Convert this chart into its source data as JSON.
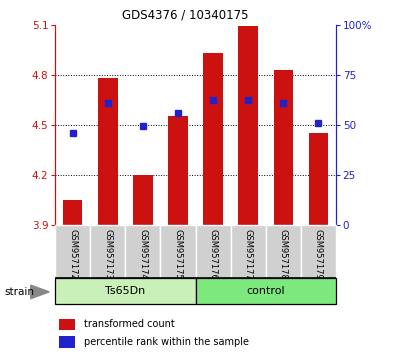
{
  "title": "GDS4376 / 10340175",
  "samples": [
    "GSM957172",
    "GSM957173",
    "GSM957174",
    "GSM957175",
    "GSM957176",
    "GSM957177",
    "GSM957178",
    "GSM957179"
  ],
  "red_values": [
    4.05,
    4.78,
    4.2,
    4.55,
    4.93,
    5.09,
    4.83,
    4.45
  ],
  "blue_values": [
    4.45,
    4.63,
    4.49,
    4.57,
    4.65,
    4.65,
    4.63,
    4.51
  ],
  "y_min": 3.9,
  "y_max": 5.1,
  "y_ticks": [
    3.9,
    4.2,
    4.5,
    4.8,
    5.1
  ],
  "right_y_ticks": [
    0,
    25,
    50,
    75,
    100
  ],
  "right_y_labels": [
    "0",
    "25",
    "50",
    "75",
    "100%"
  ],
  "groups": [
    {
      "label": "Ts65Dn",
      "indices": [
        0,
        1,
        2,
        3
      ],
      "color": "#c8f0b8"
    },
    {
      "label": "control",
      "indices": [
        4,
        5,
        6,
        7
      ],
      "color": "#7de87d"
    }
  ],
  "group_row_label": "strain",
  "red_color": "#cc1111",
  "blue_color": "#2222cc",
  "bar_base": 3.9,
  "sample_bg_color": "#d0d0d0",
  "bar_width": 0.55
}
